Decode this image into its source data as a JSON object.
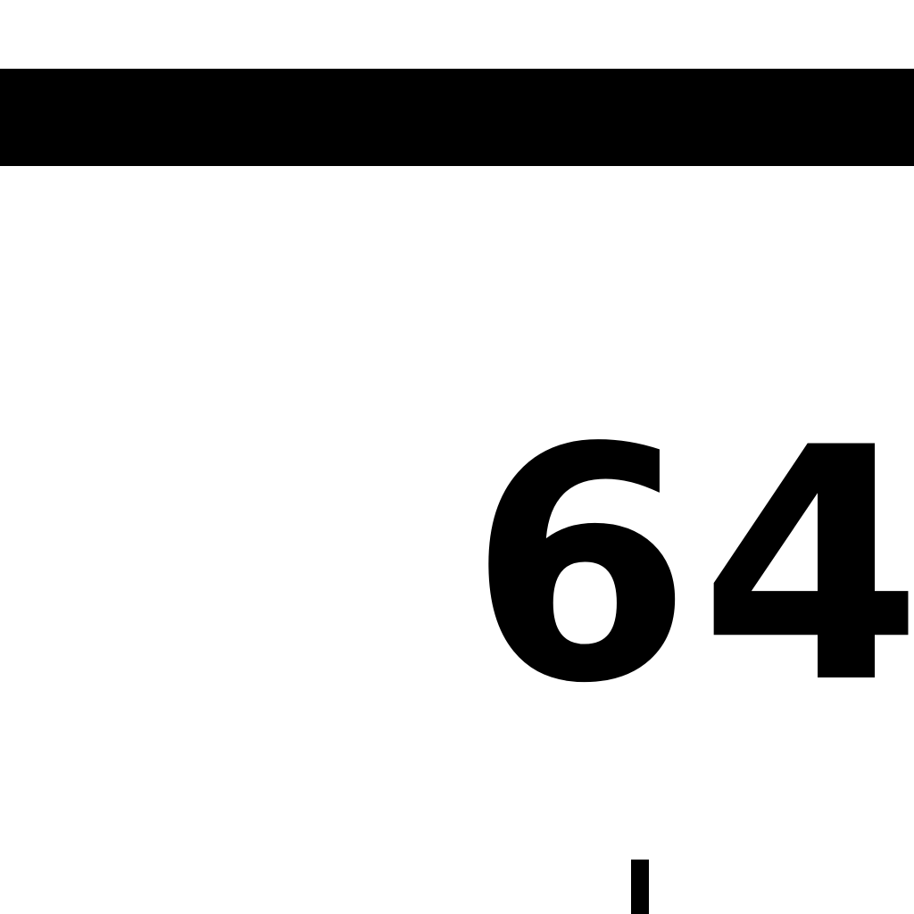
{
  "weather": {
    "temperature": "64",
    "unit_symbol": "°"
  },
  "colors": {
    "background": "#ffffff",
    "foreground": "#000000"
  }
}
